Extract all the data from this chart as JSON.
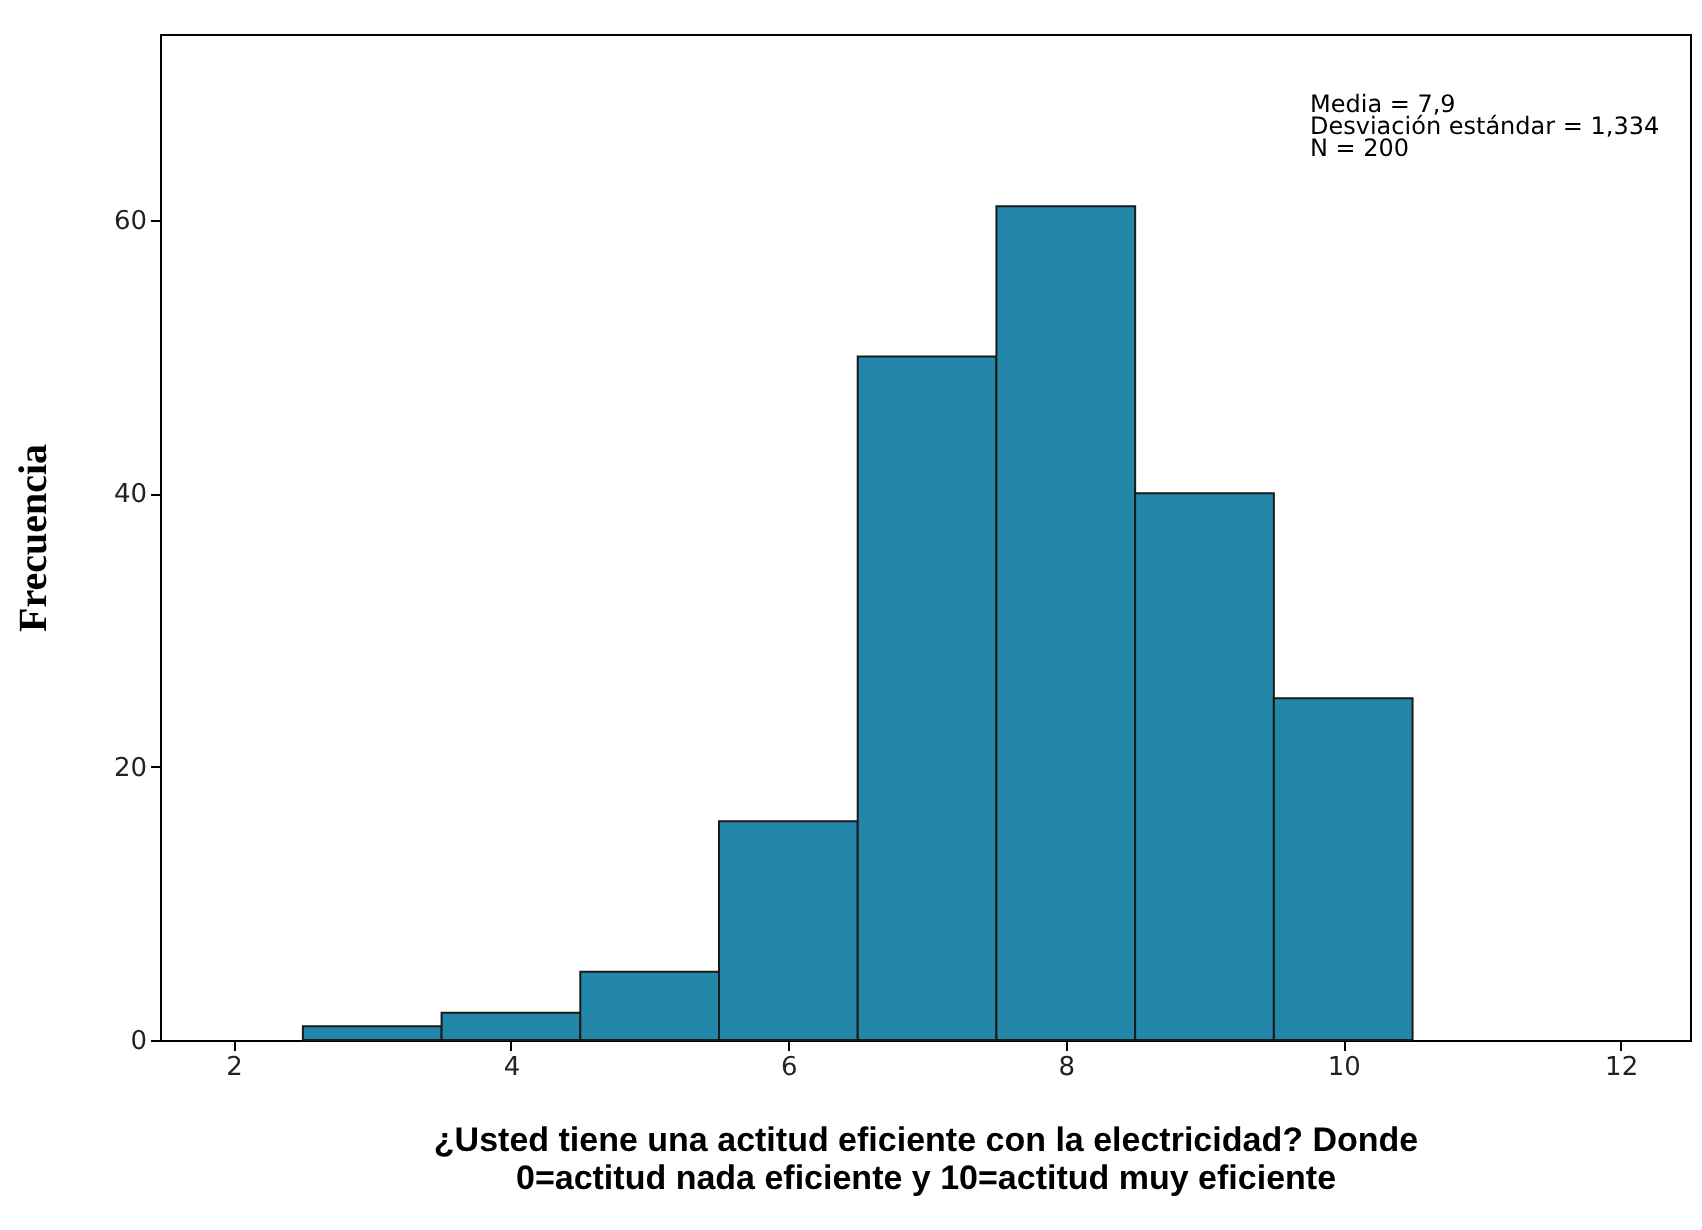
{
  "chart_data": {
    "type": "histogram",
    "xlabel": "¿Usted tiene una actitud eficiente con la electricidad? Donde\n0=actitud nada eficiente y 10=actitud muy eficiente",
    "ylabel": "Frecuencia",
    "bins": [
      2.5,
      3.5,
      4.5,
      5.5,
      6.5,
      7.5,
      8.5,
      9.5,
      10.5
    ],
    "values": [
      1,
      2,
      5,
      16,
      50,
      61,
      40,
      25
    ],
    "color": "#2387aa",
    "xlim": [
      1.47,
      12.5
    ],
    "xticks": [
      2,
      4,
      6,
      8,
      10,
      12
    ],
    "ylim": [
      0,
      73.6
    ],
    "yticks": [
      0,
      20,
      40,
      60
    ],
    "grid": false,
    "annotations": [
      "Media = 7,9",
      "Desviación estándar = 1,334",
      "N = 200"
    ]
  }
}
